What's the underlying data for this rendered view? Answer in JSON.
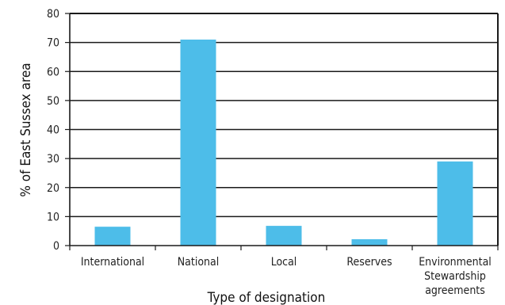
{
  "chart_data": {
    "type": "bar",
    "title": "",
    "xlabel": "Type of designation",
    "ylabel": "% of East Sussex area",
    "categories": [
      [
        "International"
      ],
      [
        "National"
      ],
      [
        "Local"
      ],
      [
        "Reserves"
      ],
      [
        "Environmental",
        "Stewardship",
        "agreements"
      ]
    ],
    "values": [
      6.5,
      71,
      6.8,
      2.2,
      29
    ],
    "ylim": [
      0,
      80
    ],
    "yticks": [
      0,
      10,
      20,
      30,
      40,
      50,
      60,
      70,
      80
    ],
    "grid": true,
    "bar_color": "#4dbde9",
    "axis_color": "#1a1a1a"
  }
}
